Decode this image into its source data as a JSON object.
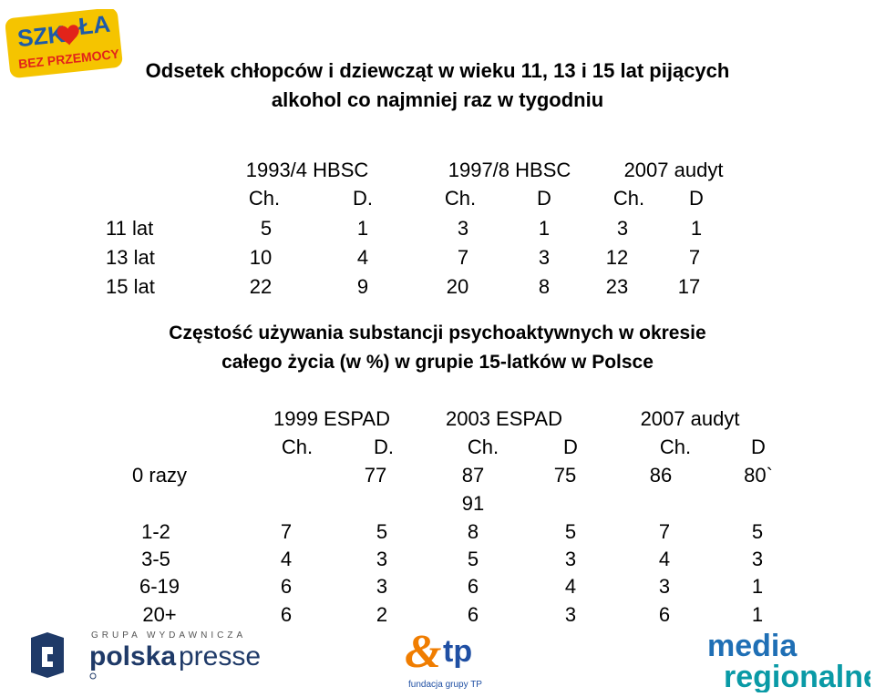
{
  "logos": {
    "szkola_line1": "SZK♥ŁA",
    "szkola_line2": "BEZ PRZEMOCY",
    "polskapresse_top": "G R U P A   W Y D A W N I C Z A",
    "polskapresse_bold": "polska",
    "polskapresse_rest": "presse",
    "tp_mark": "tp",
    "tp_sub": "fundacja grupy TP",
    "media_line1": "media",
    "media_line2": "regionalne"
  },
  "table1": {
    "title_line1": "Odsetek chłopców i dziewcząt w wieku 11, 13 i 15 lat pijących",
    "title_line2": "alkohol co najmniej raz w tygodniu",
    "group_headers": [
      "1993/4 HBSC",
      "1997/8 HBSC",
      "2007 audyt"
    ],
    "sub_headers": [
      "Ch.",
      "D.",
      "Ch.",
      "D",
      "Ch.",
      "D"
    ],
    "rows": [
      {
        "label": "11 lat",
        "values": [
          "5",
          "1",
          "3",
          "1",
          "3",
          "1"
        ]
      },
      {
        "label": "13 lat",
        "values": [
          "10",
          "4",
          "7",
          "3",
          "12",
          "7"
        ]
      },
      {
        "label": "15 lat",
        "values": [
          "22",
          "9",
          "20",
          "8",
          "23",
          "17"
        ]
      }
    ]
  },
  "table2": {
    "title_line1": "Częstość używania substancji psychoaktywnych w okresie",
    "title_line2": "całego życia (w %) w grupie 15-latków w Polsce",
    "group_headers": [
      "1999 ESPAD",
      "2003 ESPAD",
      "2007 audyt"
    ],
    "sub_headers": [
      "Ch.",
      "D.",
      "Ch.",
      "D",
      "Ch.",
      "D"
    ],
    "rows": [
      {
        "label": "0 razy",
        "values": [
          "",
          "77",
          "87",
          "75",
          "86",
          "80`"
        ]
      },
      {
        "label": "",
        "values": [
          "",
          "",
          "91",
          "",
          "",
          ""
        ]
      },
      {
        "label": "1-2",
        "values": [
          "7",
          "5",
          "8",
          "5",
          "7",
          "5"
        ]
      },
      {
        "label": "3-5",
        "values": [
          "4",
          "3",
          "5",
          "3",
          "4",
          "3"
        ]
      },
      {
        "label": "6-19",
        "values": [
          "6",
          "3",
          "6",
          "4",
          "3",
          "1"
        ]
      },
      {
        "label": "20+",
        "values": [
          "6",
          "2",
          "6",
          "3",
          "6",
          "1"
        ]
      }
    ]
  },
  "colors": {
    "szkola_yellow": "#f5c400",
    "szkola_blue": "#1e5aa8",
    "heart_red": "#e2231a",
    "polskapresse_navy": "#1f3a68",
    "tp_orange": "#f07d00",
    "tp_blue": "#1f4fa3",
    "media_blue": "#1f6fb5",
    "media_teal": "#0a9aa6"
  }
}
